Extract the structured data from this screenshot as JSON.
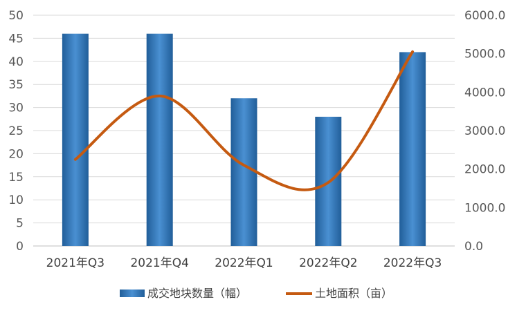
{
  "chart_data": {
    "type": "bar",
    "categories": [
      "2021年Q3",
      "2021年Q4",
      "2022年Q1",
      "2022年Q2",
      "2022年Q3"
    ],
    "series": [
      {
        "name": "成交地块数量（幅）",
        "type": "bar",
        "axis": "left",
        "values": [
          46,
          46,
          32,
          28,
          42
        ],
        "color": "#2E75B6"
      },
      {
        "name": "土地面积（亩）",
        "type": "line",
        "axis": "right",
        "smooth": true,
        "values": [
          2250,
          3900,
          2100,
          1650,
          5050
        ],
        "color": "#C55A11"
      }
    ],
    "y_left": {
      "min": 0,
      "max": 50,
      "step": 5,
      "ticks": [
        "0",
        "5",
        "10",
        "15",
        "20",
        "25",
        "30",
        "35",
        "40",
        "45",
        "50"
      ]
    },
    "y_right": {
      "min": 0,
      "max": 6000,
      "step": 1000,
      "ticks": [
        "0.0",
        "1000.0",
        "2000.0",
        "3000.0",
        "4000.0",
        "5000.0",
        "6000.0"
      ]
    },
    "grid": true,
    "legend_position": "bottom"
  }
}
